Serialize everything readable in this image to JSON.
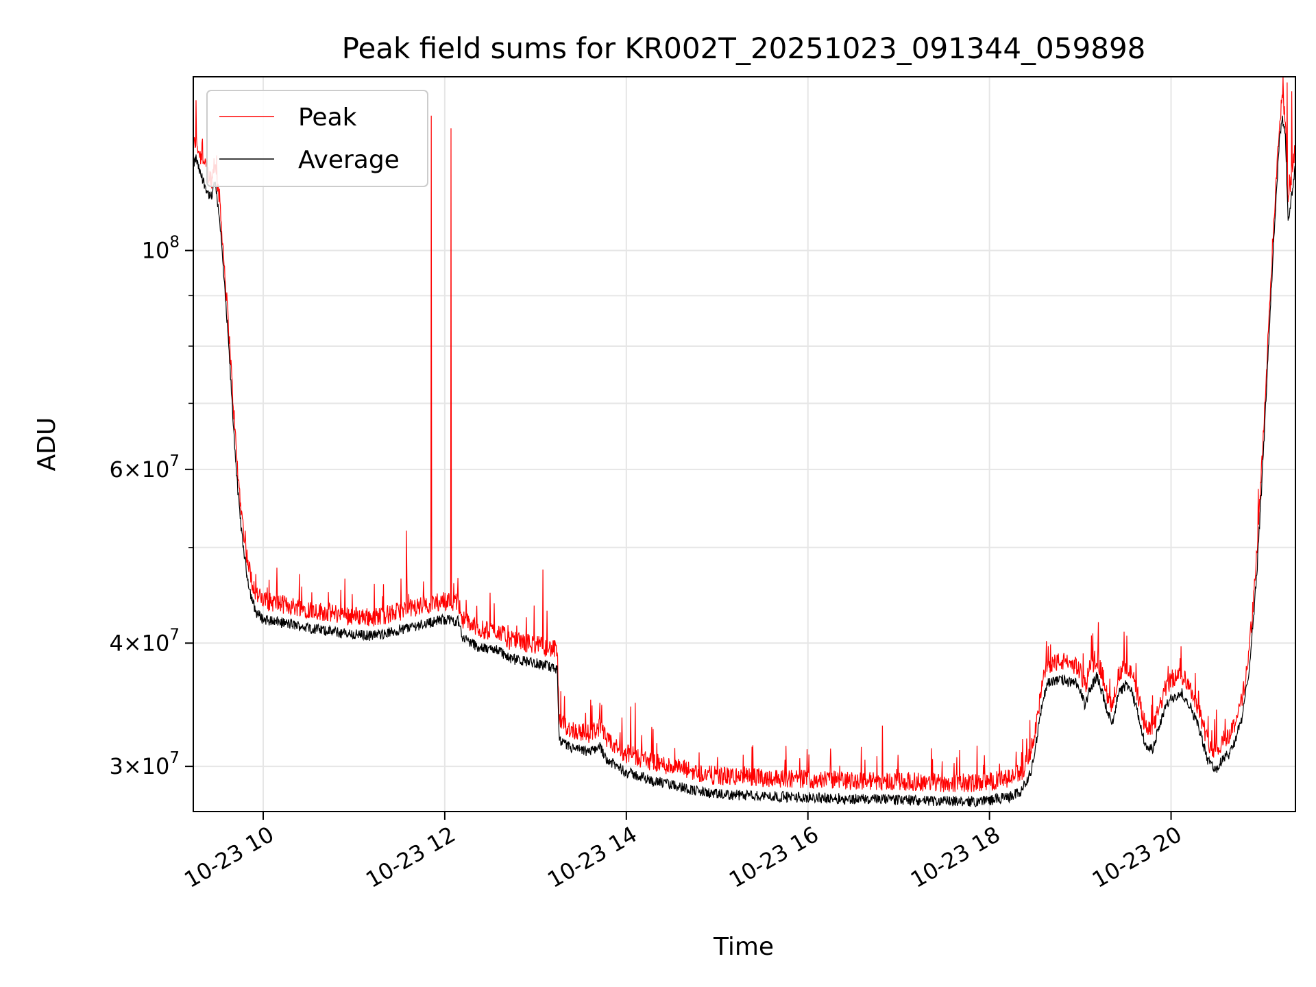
{
  "chart_data": {
    "type": "line",
    "title": "Peak field sums for KR002T_20251023_091344_059898",
    "xlabel": "Time",
    "ylabel": "ADU",
    "yscale": "log",
    "ylim": [
      27000000,
      150000000
    ],
    "xlim_hours": [
      9.23,
      21.37
    ],
    "grid": true,
    "legend": {
      "loc": "upper left",
      "entries": [
        "Peak",
        "Average"
      ]
    },
    "colors": {
      "Peak": "#ff0000",
      "Average": "#000000"
    },
    "x_ticks": [
      {
        "value": 10,
        "label": "10-23 10"
      },
      {
        "value": 12,
        "label": "10-23 12"
      },
      {
        "value": 14,
        "label": "10-23 14"
      },
      {
        "value": 16,
        "label": "10-23 16"
      },
      {
        "value": 18,
        "label": "10-23 18"
      },
      {
        "value": 20,
        "label": "10-23 20"
      }
    ],
    "y_ticks": [
      {
        "value": 30000000,
        "base": "3",
        "exp": "7"
      },
      {
        "value": 40000000,
        "base": "4",
        "exp": "7"
      },
      {
        "value": 60000000,
        "base": "6",
        "exp": "7"
      },
      {
        "value": 100000000,
        "base": "",
        "exp": "8"
      }
    ],
    "y_minor_ticks": [
      50000000,
      70000000,
      80000000,
      90000000
    ],
    "average_profile": [
      [
        9.23,
        122000000
      ],
      [
        9.26,
        124000000
      ],
      [
        9.3,
        120000000
      ],
      [
        9.35,
        117000000
      ],
      [
        9.4,
        114000000
      ],
      [
        9.44,
        113000000
      ],
      [
        9.46,
        118000000
      ],
      [
        9.48,
        115000000
      ],
      [
        9.52,
        108000000
      ],
      [
        9.57,
        93000000
      ],
      [
        9.62,
        80000000
      ],
      [
        9.67,
        67000000
      ],
      [
        9.72,
        57000000
      ],
      [
        9.77,
        51000000
      ],
      [
        9.82,
        47000000
      ],
      [
        9.87,
        44500000
      ],
      [
        9.92,
        43000000
      ],
      [
        10.0,
        42300000
      ],
      [
        10.3,
        41800000
      ],
      [
        10.6,
        41300000
      ],
      [
        10.9,
        40900000
      ],
      [
        11.2,
        40700000
      ],
      [
        11.4,
        41000000
      ],
      [
        11.6,
        41500000
      ],
      [
        11.8,
        41900000
      ],
      [
        12.0,
        42300000
      ],
      [
        12.15,
        42100000
      ],
      [
        12.2,
        40500000
      ],
      [
        12.4,
        39500000
      ],
      [
        12.6,
        39400000
      ],
      [
        12.7,
        38600000
      ],
      [
        13.0,
        38200000
      ],
      [
        13.22,
        37700000
      ],
      [
        13.24,
        37500000
      ],
      [
        13.26,
        31800000
      ],
      [
        13.4,
        31300000
      ],
      [
        13.6,
        31000000
      ],
      [
        13.7,
        31500000
      ],
      [
        13.8,
        30400000
      ],
      [
        14.0,
        29600000
      ],
      [
        14.3,
        29000000
      ],
      [
        14.6,
        28600000
      ],
      [
        14.8,
        28300000
      ],
      [
        15.0,
        28100000
      ],
      [
        15.5,
        28000000
      ],
      [
        16.0,
        27900000
      ],
      [
        16.5,
        27800000
      ],
      [
        17.0,
        27750000
      ],
      [
        17.5,
        27650000
      ],
      [
        17.9,
        27650000
      ],
      [
        18.2,
        27900000
      ],
      [
        18.35,
        28300000
      ],
      [
        18.45,
        29500000
      ],
      [
        18.52,
        32000000
      ],
      [
        18.6,
        35500000
      ],
      [
        18.65,
        36500000
      ],
      [
        18.8,
        36700000
      ],
      [
        18.9,
        36500000
      ],
      [
        18.95,
        36400000
      ],
      [
        19.0,
        35800000
      ],
      [
        19.05,
        34600000
      ],
      [
        19.1,
        35800000
      ],
      [
        19.18,
        37000000
      ],
      [
        19.22,
        36200000
      ],
      [
        19.3,
        34000000
      ],
      [
        19.35,
        33200000
      ],
      [
        19.42,
        35500000
      ],
      [
        19.5,
        36300000
      ],
      [
        19.56,
        35800000
      ],
      [
        19.62,
        34300000
      ],
      [
        19.7,
        32000000
      ],
      [
        19.75,
        31200000
      ],
      [
        19.8,
        31300000
      ],
      [
        19.86,
        32700000
      ],
      [
        19.93,
        34300000
      ],
      [
        20.0,
        35200000
      ],
      [
        20.12,
        35600000
      ],
      [
        20.2,
        34700000
      ],
      [
        20.3,
        33000000
      ],
      [
        20.4,
        30500000
      ],
      [
        20.47,
        29900000
      ],
      [
        20.5,
        29800000
      ],
      [
        20.58,
        30600000
      ],
      [
        20.63,
        30800000
      ],
      [
        20.7,
        31800000
      ],
      [
        20.78,
        33500000
      ],
      [
        20.85,
        37000000
      ],
      [
        20.9,
        41500000
      ],
      [
        20.95,
        48000000
      ],
      [
        21.0,
        58000000
      ],
      [
        21.05,
        72000000
      ],
      [
        21.1,
        90000000
      ],
      [
        21.15,
        110000000
      ],
      [
        21.2,
        132000000
      ],
      [
        21.23,
        136000000
      ],
      [
        21.26,
        130000000
      ],
      [
        21.29,
        106000000
      ],
      [
        21.32,
        112000000
      ],
      [
        21.37,
        122000000
      ]
    ],
    "peak_profile_offset": 1.035,
    "peak_spikes": [
      [
        9.26,
        142000000
      ],
      [
        9.46,
        124000000
      ],
      [
        9.68,
        55000000
      ],
      [
        9.8,
        52000000
      ],
      [
        9.92,
        47000000
      ],
      [
        10.4,
        47000000
      ],
      [
        10.9,
        46500000
      ],
      [
        11.58,
        52000000
      ],
      [
        11.62,
        44000000
      ],
      [
        11.85,
        137000000
      ],
      [
        12.07,
        133000000
      ],
      [
        12.1,
        46000000
      ],
      [
        12.5,
        45000000
      ],
      [
        12.9,
        42500000
      ],
      [
        13.08,
        47500000
      ],
      [
        13.22,
        40000000
      ],
      [
        13.55,
        34000000
      ],
      [
        14.05,
        34500000
      ],
      [
        14.1,
        34800000
      ],
      [
        14.8,
        31000000
      ],
      [
        15.3,
        30000000
      ],
      [
        15.8,
        29500000
      ],
      [
        16.82,
        33000000
      ],
      [
        17.3,
        29200000
      ],
      [
        17.9,
        29200000
      ],
      [
        18.3,
        30000000
      ],
      [
        18.82,
        38500000
      ],
      [
        19.2,
        42000000
      ],
      [
        19.48,
        40000000
      ],
      [
        20.15,
        37500000
      ],
      [
        20.3,
        35800000
      ],
      [
        20.48,
        33500000
      ],
      [
        21.28,
        148000000
      ],
      [
        21.33,
        145000000
      ]
    ]
  }
}
